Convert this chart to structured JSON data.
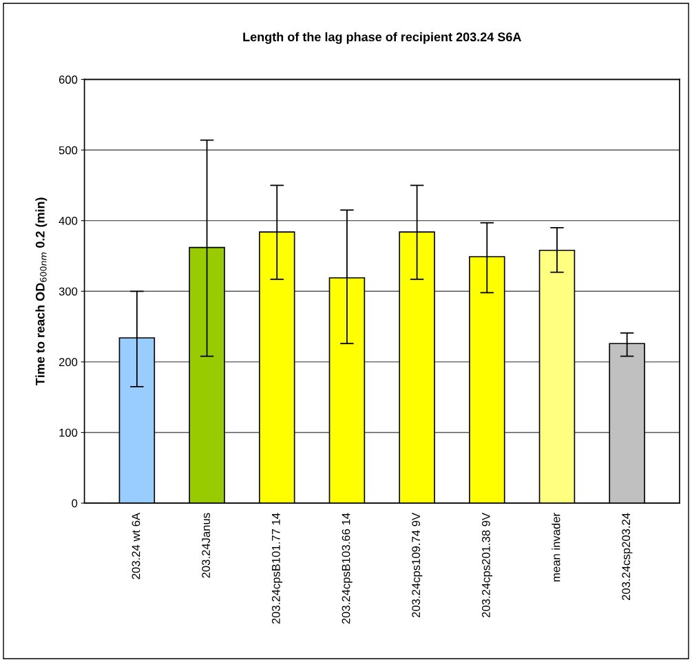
{
  "chart_data": {
    "type": "bar",
    "title": "Length of the lag phase of recipient 203.24 S6A",
    "ylabel": "Time to reach OD$_{600nm}$ 0.2 (min)",
    "categories": [
      "203.24 wt 6A",
      "203.24Janus",
      "203.24cpsB101.77 14",
      "203.24cpsB103.66 14",
      "203.24cps109.74 9V",
      "203.24cps201.38 9V",
      "mean invader",
      "203.24csp203.24"
    ],
    "values": [
      234,
      362,
      384,
      319,
      384,
      349,
      358,
      226
    ],
    "errors": [
      [
        165,
        300
      ],
      [
        208,
        514
      ],
      [
        317,
        450
      ],
      [
        226,
        415
      ],
      [
        317,
        450
      ],
      [
        298,
        397
      ],
      [
        327,
        390
      ],
      [
        208,
        241
      ]
    ],
    "colors": [
      "#99ccff",
      "#99cc00",
      "#ffff00",
      "#ffff00",
      "#ffff00",
      "#ffff00",
      "#ffff80",
      "#c0c0c0"
    ],
    "ylim": [
      0,
      600
    ],
    "yticks": [
      0,
      100,
      200,
      300,
      400,
      500,
      600
    ],
    "grid": "y",
    "legend": false
  }
}
